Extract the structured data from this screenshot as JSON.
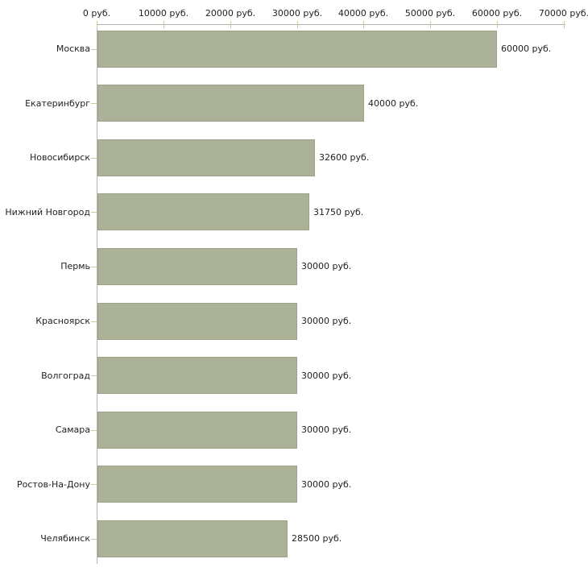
{
  "chart_data": {
    "type": "bar",
    "orientation": "horizontal",
    "title": "",
    "xlabel": "",
    "ylabel": "",
    "unit": "руб.",
    "grid": false,
    "legend": false,
    "xlim": [
      0,
      70000
    ],
    "x_tick_values": [
      0,
      10000,
      20000,
      30000,
      40000,
      50000,
      60000,
      70000
    ],
    "x_tick_labels": [
      "0 руб.",
      "10000 руб.",
      "20000 руб.",
      "30000 руб.",
      "40000 руб.",
      "50000 руб.",
      "60000 руб.",
      "70000 руб."
    ],
    "categories": [
      "Москва",
      "Екатеринбург",
      "Новосибирск",
      "Нижний Новгород",
      "Пермь",
      "Красноярск",
      "Волгоград",
      "Самара",
      "Ростов-На-Дону",
      "Челябинск"
    ],
    "values": [
      60000,
      40000,
      32600,
      31750,
      30000,
      30000,
      30000,
      30000,
      30000,
      28500
    ],
    "value_labels": [
      "60000 руб.",
      "40000 руб.",
      "32600 руб.",
      "31750 руб.",
      "30000 руб.",
      "30000 руб.",
      "30000 руб.",
      "30000 руб.",
      "30000 руб.",
      "28500 руб."
    ],
    "colors": {
      "bar_fill": "#acb298",
      "bar_border": "#9da389",
      "axis_line": "#b3b3b3",
      "tick_mark": "#cbcb9e",
      "text": "#222222",
      "background": "#ffffff"
    }
  }
}
